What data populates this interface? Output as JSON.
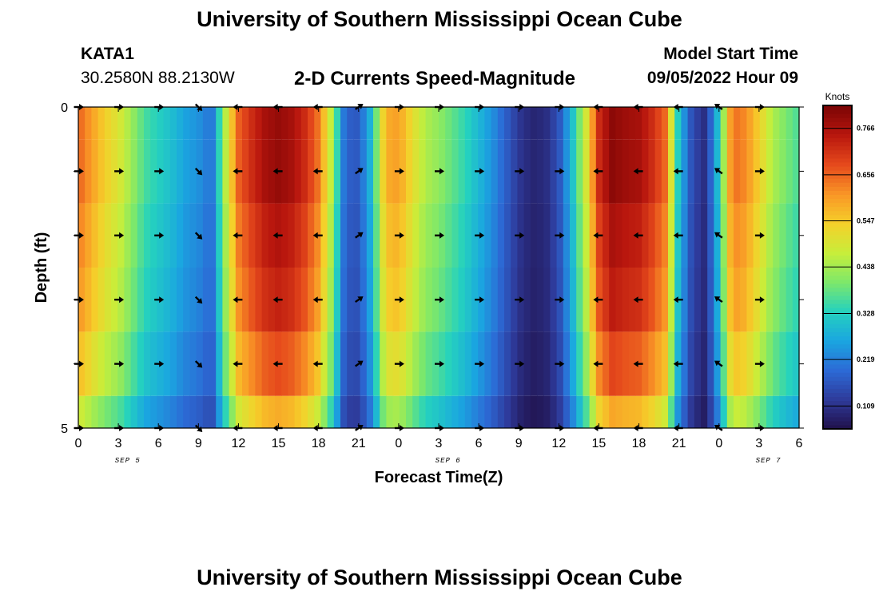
{
  "header": {
    "title": "University of Southern Mississippi Ocean Cube",
    "station": "KATA1",
    "coords": "30.2580N  88.2130W",
    "chart_title": "2-D Currents Speed-Magnitude",
    "model_start_label": "Model Start Time",
    "model_start_value": "09/05/2022 Hour 09"
  },
  "footer": {
    "title": "University of Southern Mississippi Ocean Cube"
  },
  "chart_data": {
    "type": "heatmap",
    "title": "2-D Currents Speed-Magnitude",
    "xlabel": "Forecast Time(Z)",
    "ylabel": "Depth (ft)",
    "ylim": [
      0,
      5
    ],
    "y_ticks": [
      "0",
      "5"
    ],
    "depth_levels_ft": [
      0,
      1,
      2,
      3,
      4,
      5
    ],
    "x_hours_since_start": [
      0,
      3,
      6,
      9,
      12,
      15,
      18,
      21,
      24,
      27,
      30,
      33,
      36,
      39,
      42,
      45,
      48,
      51,
      54
    ],
    "x_tick_labels": [
      "0",
      "3",
      "6",
      "9",
      "12",
      "15",
      "18",
      "21",
      "0",
      "3",
      "6",
      "9",
      "12",
      "15",
      "18",
      "21",
      "0",
      "3",
      "6"
    ],
    "date_labels": [
      {
        "label": "SEP 5",
        "hour": 3.7
      },
      {
        "label": "SEP 6",
        "hour": 27.7
      },
      {
        "label": "SEP 7",
        "hour": 51.7
      }
    ],
    "colorbar": {
      "label": "Knots",
      "min": 0.055,
      "max": 0.82,
      "ticks": [
        0.109,
        0.219,
        0.328,
        0.438,
        0.547,
        0.656,
        0.766
      ],
      "tick_labels": [
        "0.109",
        "0.219",
        "0.328",
        "0.438",
        "0.547",
        "0.656",
        "0.766"
      ],
      "colors": [
        "#201049",
        "#2e3a9a",
        "#2c6ad6",
        "#1aa6e0",
        "#25d2be",
        "#7ee86a",
        "#c8ee3a",
        "#f5d02a",
        "#f99526",
        "#e5491c",
        "#b8160e",
        "#7a0404"
      ]
    },
    "speed_profile_hours": [
      0,
      1,
      2,
      3,
      4,
      5,
      6,
      7,
      8,
      9,
      10,
      11,
      12,
      13,
      14,
      15,
      16,
      17,
      18,
      19,
      20,
      21,
      22,
      23,
      24,
      25,
      26,
      27,
      28,
      29,
      30,
      31,
      32,
      33,
      34,
      35,
      36,
      37,
      38,
      39,
      40,
      41,
      42,
      43,
      44,
      45,
      46,
      47,
      48,
      49,
      50,
      51,
      52,
      53,
      54
    ],
    "speed_profile_knots": [
      0.66,
      0.6,
      0.54,
      0.5,
      0.43,
      0.36,
      0.33,
      0.3,
      0.26,
      0.24,
      0.2,
      0.45,
      0.66,
      0.72,
      0.77,
      0.79,
      0.77,
      0.72,
      0.64,
      0.45,
      0.18,
      0.17,
      0.3,
      0.58,
      0.6,
      0.52,
      0.45,
      0.42,
      0.38,
      0.34,
      0.29,
      0.24,
      0.18,
      0.12,
      0.09,
      0.1,
      0.16,
      0.3,
      0.48,
      0.72,
      0.8,
      0.78,
      0.77,
      0.72,
      0.65,
      0.3,
      0.15,
      0.1,
      0.32,
      0.65,
      0.62,
      0.54,
      0.45,
      0.4,
      0.36
    ],
    "depth_factor": [
      1.0,
      1.0,
      0.96,
      0.93,
      0.86,
      0.74
    ],
    "arrows": {
      "hours": [
        0,
        3,
        6,
        9,
        12,
        15,
        18,
        21,
        24,
        27,
        30,
        33,
        36,
        39,
        42,
        45,
        48,
        51
      ],
      "angles_deg": [
        0,
        0,
        0,
        45,
        180,
        180,
        180,
        -35,
        0,
        0,
        0,
        0,
        0,
        180,
        180,
        180,
        -145,
        0
      ]
    }
  }
}
